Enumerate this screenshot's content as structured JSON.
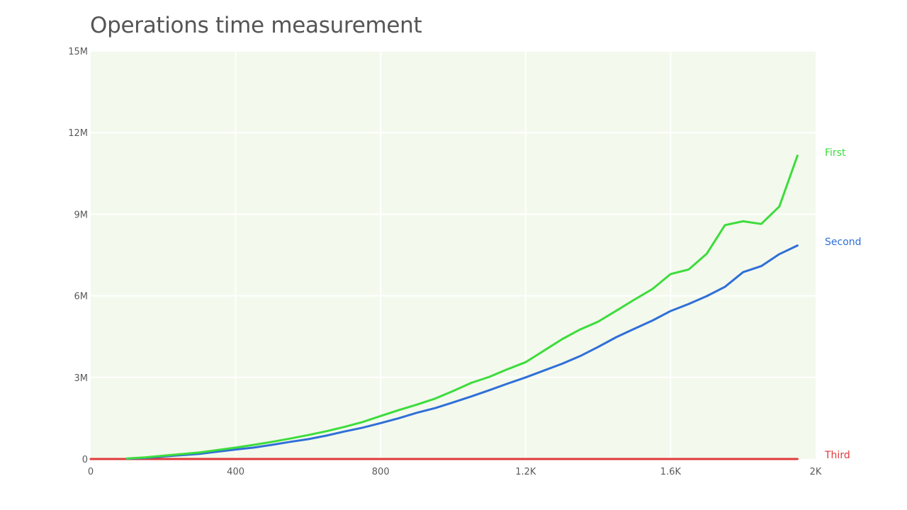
{
  "chart_data": {
    "type": "line",
    "title": "Operations time measurement",
    "xlim": [
      0,
      2000
    ],
    "ylim": [
      0,
      15000000
    ],
    "x_ticks": [
      {
        "value": 0,
        "label": "0"
      },
      {
        "value": 400,
        "label": "400"
      },
      {
        "value": 800,
        "label": "800"
      },
      {
        "value": 1200,
        "label": "1.2K"
      },
      {
        "value": 1600,
        "label": "1.6K"
      },
      {
        "value": 2000,
        "label": "2K"
      }
    ],
    "y_ticks": [
      {
        "value": 0,
        "label": "0"
      },
      {
        "value": 3000000,
        "label": "3M"
      },
      {
        "value": 6000000,
        "label": "6M"
      },
      {
        "value": 9000000,
        "label": "9M"
      },
      {
        "value": 12000000,
        "label": "12M"
      },
      {
        "value": 15000000,
        "label": "15M"
      }
    ],
    "grid": true,
    "plot_background": "#f3f9ec",
    "legend_placement": "right, at line ends",
    "series": [
      {
        "name": "First",
        "color": "#3ddc3d",
        "points": [
          [
            100,
            20000
          ],
          [
            150,
            60000
          ],
          [
            200,
            120000
          ],
          [
            250,
            180000
          ],
          [
            300,
            240000
          ],
          [
            350,
            330000
          ],
          [
            400,
            420000
          ],
          [
            450,
            520000
          ],
          [
            500,
            630000
          ],
          [
            550,
            750000
          ],
          [
            600,
            880000
          ],
          [
            650,
            1020000
          ],
          [
            700,
            1180000
          ],
          [
            750,
            1360000
          ],
          [
            800,
            1580000
          ],
          [
            850,
            1800000
          ],
          [
            900,
            2000000
          ],
          [
            950,
            2220000
          ],
          [
            1000,
            2500000
          ],
          [
            1050,
            2800000
          ],
          [
            1100,
            3020000
          ],
          [
            1150,
            3300000
          ],
          [
            1200,
            3560000
          ],
          [
            1250,
            3980000
          ],
          [
            1300,
            4400000
          ],
          [
            1350,
            4760000
          ],
          [
            1400,
            5050000
          ],
          [
            1450,
            5450000
          ],
          [
            1500,
            5860000
          ],
          [
            1550,
            6250000
          ],
          [
            1600,
            6800000
          ],
          [
            1650,
            6970000
          ],
          [
            1700,
            7550000
          ],
          [
            1750,
            8600000
          ],
          [
            1800,
            8740000
          ],
          [
            1850,
            8640000
          ],
          [
            1900,
            9280000
          ],
          [
            1950,
            11150000
          ]
        ]
      },
      {
        "name": "Second",
        "color": "#2f6fd8",
        "points": [
          [
            100,
            10000
          ],
          [
            150,
            40000
          ],
          [
            200,
            90000
          ],
          [
            250,
            140000
          ],
          [
            300,
            190000
          ],
          [
            350,
            270000
          ],
          [
            400,
            350000
          ],
          [
            450,
            420000
          ],
          [
            500,
            520000
          ],
          [
            550,
            630000
          ],
          [
            600,
            730000
          ],
          [
            650,
            860000
          ],
          [
            700,
            1010000
          ],
          [
            750,
            1150000
          ],
          [
            800,
            1320000
          ],
          [
            850,
            1500000
          ],
          [
            900,
            1700000
          ],
          [
            950,
            1870000
          ],
          [
            1000,
            2080000
          ],
          [
            1050,
            2300000
          ],
          [
            1100,
            2530000
          ],
          [
            1150,
            2770000
          ],
          [
            1200,
            3000000
          ],
          [
            1250,
            3250000
          ],
          [
            1300,
            3500000
          ],
          [
            1350,
            3780000
          ],
          [
            1400,
            4120000
          ],
          [
            1450,
            4480000
          ],
          [
            1500,
            4790000
          ],
          [
            1550,
            5090000
          ],
          [
            1600,
            5440000
          ],
          [
            1650,
            5700000
          ],
          [
            1700,
            5990000
          ],
          [
            1750,
            6330000
          ],
          [
            1800,
            6870000
          ],
          [
            1850,
            7090000
          ],
          [
            1900,
            7530000
          ],
          [
            1950,
            7850000
          ]
        ]
      },
      {
        "name": "Third",
        "color": "#e03a3a",
        "points": [
          [
            0,
            0
          ],
          [
            100,
            0
          ],
          [
            200,
            0
          ],
          [
            300,
            0
          ],
          [
            400,
            0
          ],
          [
            500,
            0
          ],
          [
            600,
            0
          ],
          [
            700,
            0
          ],
          [
            800,
            0
          ],
          [
            900,
            0
          ],
          [
            1000,
            0
          ],
          [
            1100,
            0
          ],
          [
            1200,
            0
          ],
          [
            1300,
            0
          ],
          [
            1400,
            0
          ],
          [
            1500,
            0
          ],
          [
            1600,
            0
          ],
          [
            1700,
            0
          ],
          [
            1800,
            0
          ],
          [
            1900,
            0
          ],
          [
            1950,
            0
          ]
        ]
      }
    ]
  }
}
